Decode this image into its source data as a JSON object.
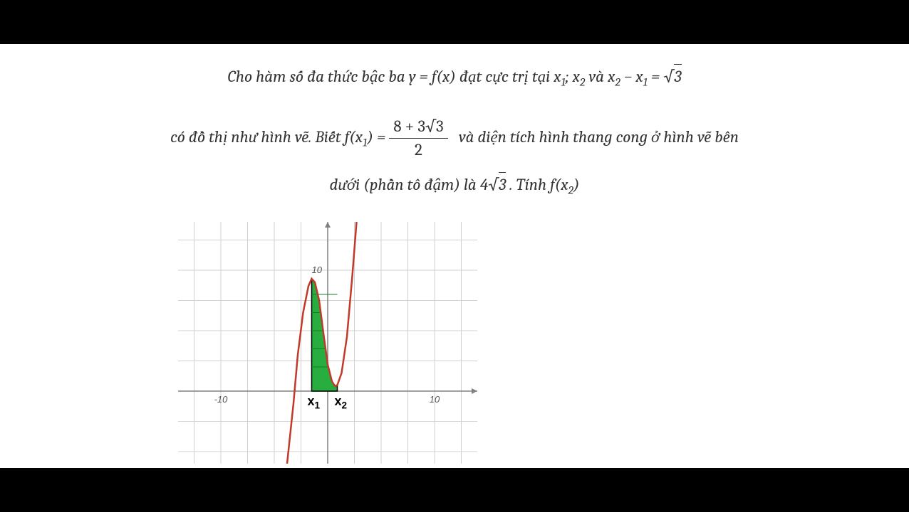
{
  "problem": {
    "line1_a": "Cho hàm số đa thức bậc ba y = f(x) đạt cực trị tại x",
    "line1_b": "; x",
    "line1_c": " và x",
    "line1_d": " − x",
    "line1_e": " = ",
    "line2_a": "có đồ thị như hình vẽ. Biết f(x",
    "line2_b": ") = ",
    "line2_c": " và diện tích hình thang cong ở hình vẽ bên",
    "line3_a": "dưới (phần tô đậm) là 4",
    "line3_b": " . Tính f(x",
    "line3_c": ")",
    "sub1": "1",
    "sub2": "2",
    "sqrt3": "3",
    "frac_num": "8 + 3√3",
    "frac_den": "2"
  },
  "chart": {
    "type": "line",
    "curve_color": "#c0392b",
    "fill_color": "#27ae3f",
    "axis_color": "#808080",
    "grid_color": "#d0d0d0",
    "background_color": "#ffffff",
    "xlim": [
      -14,
      14
    ],
    "ylim": [
      -6,
      14
    ],
    "xticks": [
      -10,
      10
    ],
    "yticks": [
      10
    ],
    "x1_label": "x",
    "x1_sub": "1",
    "x2_label": "x",
    "x2_sub": "2",
    "x1_pos": -1.5,
    "x2_pos": 0.9,
    "curve_points": [
      [
        -3.8,
        -6
      ],
      [
        -3.2,
        -1
      ],
      [
        -2.8,
        3
      ],
      [
        -2.3,
        6.5
      ],
      [
        -1.8,
        8.7
      ],
      [
        -1.5,
        9.3
      ],
      [
        -1.2,
        9.0
      ],
      [
        -0.8,
        7.5
      ],
      [
        -0.4,
        4.8
      ],
      [
        0,
        2.2
      ],
      [
        0.4,
        0.8
      ],
      [
        0.7,
        0.4
      ],
      [
        0.9,
        0.5
      ],
      [
        1.3,
        1.5
      ],
      [
        1.8,
        4.5
      ],
      [
        2.3,
        9.5
      ],
      [
        2.7,
        14
      ]
    ],
    "fill_region": {
      "x_start": -1.5,
      "x_end": 0.9,
      "y_bottom": 0
    }
  }
}
